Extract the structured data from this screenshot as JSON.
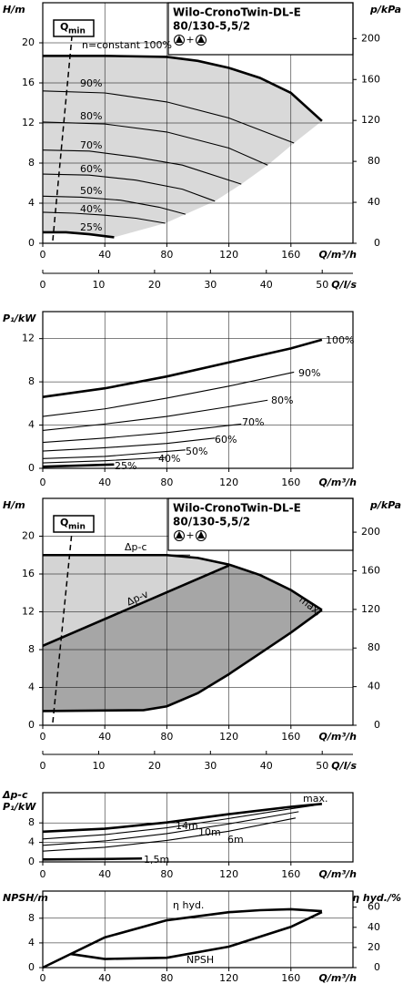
{
  "chart_data": [
    {
      "type": "line",
      "title": [
        "Wilo-CronoTwin-DL-E",
        "80/130-5,5/2"
      ],
      "title_plus": "+",
      "qmin": {
        "main": "Q",
        "sub": "min"
      },
      "ylabel": "H/m",
      "y2label": "p/kPa",
      "xlabel": "Q/m³/h",
      "x2label": "Q/l/s",
      "xlim": [
        0,
        200
      ],
      "xticks": [
        0,
        40,
        80,
        120,
        160
      ],
      "x2lim": [
        0,
        55.5
      ],
      "x2ticks": [
        0,
        10,
        20,
        30,
        40,
        50
      ],
      "ylim": [
        0,
        24
      ],
      "yticks": [
        0,
        4,
        8,
        12,
        16,
        20
      ],
      "y2lim": [
        0,
        235
      ],
      "y2ticks": [
        0,
        40,
        80,
        120,
        160,
        200
      ],
      "grid": true,
      "color": "#000000",
      "fill": "#d9d9d9",
      "series": [
        {
          "name": "n=constant 100%",
          "bold": true,
          "x": [
            0,
            40,
            80,
            100,
            120,
            140,
            160,
            180
          ],
          "values": [
            18.7,
            18.7,
            18.6,
            18.2,
            17.5,
            16.5,
            15.0,
            12.2
          ]
        },
        {
          "name": "90%",
          "x": [
            0,
            40,
            80,
            120,
            162
          ],
          "values": [
            15.2,
            15.0,
            14.1,
            12.5,
            10.0
          ]
        },
        {
          "name": "80%",
          "x": [
            0,
            40,
            80,
            120,
            145
          ],
          "values": [
            12.1,
            11.9,
            11.1,
            9.5,
            7.8
          ]
        },
        {
          "name": "70%",
          "x": [
            0,
            30,
            60,
            90,
            128
          ],
          "values": [
            9.3,
            9.2,
            8.6,
            7.8,
            5.9
          ]
        },
        {
          "name": "60%",
          "x": [
            0,
            30,
            60,
            90,
            111
          ],
          "values": [
            6.9,
            6.8,
            6.3,
            5.4,
            4.2
          ]
        },
        {
          "name": "50%",
          "x": [
            0,
            25,
            50,
            75,
            92
          ],
          "values": [
            4.7,
            4.6,
            4.3,
            3.6,
            2.9
          ]
        },
        {
          "name": "40%",
          "x": [
            0,
            20,
            40,
            60,
            79
          ],
          "values": [
            3.1,
            3.0,
            2.8,
            2.5,
            2.0
          ]
        },
        {
          "name": "25%",
          "bold": true,
          "x": [
            0,
            15,
            30,
            46
          ],
          "values": [
            1.1,
            1.1,
            0.9,
            0.6
          ]
        }
      ]
    },
    {
      "type": "line",
      "ylabel": "P₁/kW",
      "xlabel": "Q/m³/h",
      "xlim": [
        0,
        200
      ],
      "xticks": [
        0,
        40,
        80,
        120,
        160
      ],
      "ylim": [
        0,
        14.5
      ],
      "yticks": [
        0,
        4,
        8,
        12
      ],
      "grid": true,
      "color": "#000000",
      "series": [
        {
          "name": "100%",
          "bold": true,
          "x": [
            0,
            40,
            80,
            120,
            160,
            180
          ],
          "values": [
            6.6,
            7.4,
            8.5,
            9.8,
            11.1,
            11.9
          ]
        },
        {
          "name": "90%",
          "x": [
            0,
            40,
            80,
            120,
            162
          ],
          "values": [
            4.8,
            5.5,
            6.5,
            7.6,
            8.9
          ]
        },
        {
          "name": "80%",
          "x": [
            0,
            40,
            80,
            120,
            145
          ],
          "values": [
            3.5,
            4.1,
            4.8,
            5.7,
            6.3
          ]
        },
        {
          "name": "70%",
          "x": [
            0,
            40,
            80,
            128
          ],
          "values": [
            2.4,
            2.8,
            3.3,
            4.1
          ]
        },
        {
          "name": "60%",
          "x": [
            0,
            40,
            80,
            111
          ],
          "values": [
            1.6,
            1.9,
            2.3,
            2.8
          ]
        },
        {
          "name": "50%",
          "x": [
            0,
            40,
            92
          ],
          "values": [
            0.9,
            1.1,
            1.7
          ]
        },
        {
          "name": "40%",
          "x": [
            0,
            40,
            79
          ],
          "values": [
            0.5,
            0.7,
            1.0
          ]
        },
        {
          "name": "25%",
          "bold": true,
          "x": [
            0,
            46
          ],
          "values": [
            0.15,
            0.35
          ]
        }
      ]
    },
    {
      "type": "line",
      "title": [
        "Wilo-CronoTwin-DL-E",
        "80/130-5,5/2"
      ],
      "title_plus": "+",
      "qmin": {
        "main": "Q",
        "sub": "min"
      },
      "ylabel": "H/m",
      "y2label": "p/kPa",
      "xlabel": "Q/m³/h",
      "x2label": "Q/l/s",
      "xlim": [
        0,
        200
      ],
      "xticks": [
        0,
        40,
        80,
        120,
        160
      ],
      "x2lim": [
        0,
        55.5
      ],
      "x2ticks": [
        0,
        10,
        20,
        30,
        40,
        50
      ],
      "ylim": [
        0,
        24
      ],
      "yticks": [
        0,
        4,
        8,
        12,
        16,
        20
      ],
      "y2lim": [
        0,
        235
      ],
      "y2ticks": [
        0,
        40,
        80,
        120,
        160,
        200
      ],
      "grid": true,
      "color": "#000000",
      "fill": "#a6a6a6",
      "fill_light": "#d4d4d4",
      "series": [
        {
          "name": "Δp-c",
          "x": [
            0,
            95
          ],
          "values": [
            18,
            18
          ]
        },
        {
          "name": "Δp-v",
          "bold": true,
          "x": [
            0,
            120
          ],
          "values": [
            8.4,
            16.9
          ]
        },
        {
          "name": "max.",
          "bold": true,
          "x": [
            0,
            40,
            80,
            100,
            120,
            140,
            160,
            180
          ],
          "values": [
            18,
            18,
            18,
            17.7,
            17.0,
            15.9,
            14.3,
            12.2
          ]
        },
        {
          "bold": true,
          "x": [
            180,
            160,
            140,
            120,
            100,
            80,
            65,
            0
          ],
          "values": [
            12.2,
            9.8,
            7.6,
            5.4,
            3.4,
            2.0,
            1.6,
            1.5
          ]
        }
      ]
    },
    {
      "type": "line",
      "ylabel": [
        "Δp-c",
        "P₁/kW"
      ],
      "xlabel": "Q/m³/h",
      "xlim": [
        0,
        200
      ],
      "xticks": [
        0,
        40,
        80,
        120,
        160
      ],
      "ylim": [
        0,
        14.2
      ],
      "yticks": [
        0,
        4,
        8
      ],
      "grid": true,
      "color": "#000000",
      "series": [
        {
          "name": "max.",
          "bold": true,
          "x": [
            0,
            40,
            80,
            120,
            160,
            180
          ],
          "values": [
            6.2,
            6.8,
            8.1,
            9.8,
            11.3,
            11.9
          ]
        },
        {
          "name": "14m",
          "x": [
            0,
            40,
            80,
            120,
            160,
            175
          ],
          "values": [
            4.7,
            5.6,
            7.0,
            8.9,
            10.9,
            11.6
          ]
        },
        {
          "name": "10m",
          "x": [
            0,
            40,
            80,
            120,
            165
          ],
          "values": [
            3.4,
            4.3,
            5.8,
            7.8,
            10.3
          ]
        },
        {
          "name": "6m",
          "x": [
            0,
            40,
            80,
            120,
            163
          ],
          "values": [
            2.2,
            3.0,
            4.4,
            6.3,
            9.0
          ]
        },
        {
          "name": "1,5m",
          "bold": true,
          "x": [
            0,
            40,
            64
          ],
          "values": [
            0.5,
            0.6,
            0.7
          ]
        }
      ]
    },
    {
      "type": "line",
      "ylabel": "NPSH/m",
      "y2label": "η hyd./%",
      "xlabel": "Q/m³/h",
      "xlim": [
        0,
        200
      ],
      "xticks": [
        0,
        40,
        80,
        120,
        160
      ],
      "ylim": [
        0,
        12.4
      ],
      "yticks": [
        0,
        4,
        8
      ],
      "y2lim": [
        0,
        76
      ],
      "y2ticks": [
        0,
        20,
        40,
        60
      ],
      "grid": true,
      "color": "#000000",
      "series": [
        {
          "name": "η hyd.",
          "axis": "y2",
          "bold": true,
          "x": [
            0,
            40,
            80,
            120,
            140,
            160,
            180
          ],
          "values": [
            0,
            30,
            47,
            55,
            57,
            58,
            56
          ]
        },
        {
          "name": "NPSH",
          "bold": true,
          "x": [
            18,
            40,
            80,
            120,
            160,
            180
          ],
          "values": [
            2.2,
            1.4,
            1.6,
            3.4,
            6.6,
            9.0
          ]
        }
      ]
    }
  ]
}
